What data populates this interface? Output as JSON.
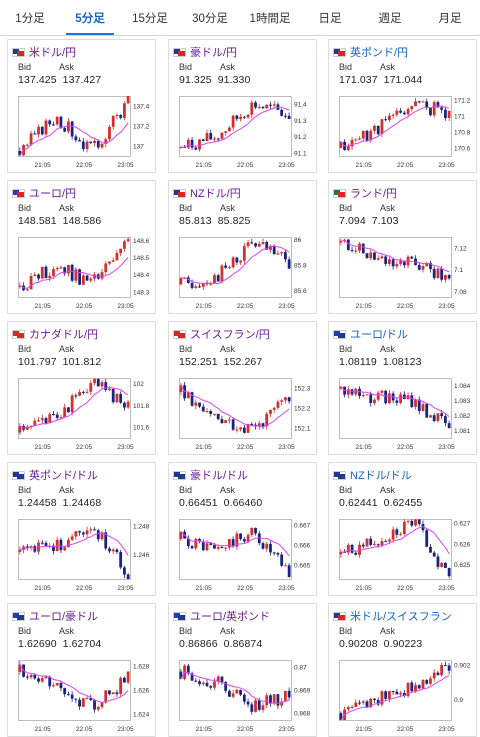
{
  "tabs": [
    {
      "label": "1分足",
      "active": false
    },
    {
      "label": "5分足",
      "active": true
    },
    {
      "label": "15分足",
      "active": false
    },
    {
      "label": "30分足",
      "active": false
    },
    {
      "label": "1時間足",
      "active": false
    },
    {
      "label": "日足",
      "active": false
    },
    {
      "label": "週足",
      "active": false
    },
    {
      "label": "月足",
      "active": false
    }
  ],
  "labels": {
    "bid": "Bid",
    "ask": "Ask"
  },
  "x_ticks": [
    "21:05",
    "22:05",
    "23:05"
  ],
  "colors": {
    "up": "#d32f2f",
    "down": "#1a237e",
    "ma": "#e040fb",
    "pair_purple": "#6a1b9a",
    "pair_blue": "#1565c0"
  },
  "pairs": [
    {
      "name": "米ドル/円",
      "flag": [
        "#1e3a8a",
        "#dc2626"
      ],
      "bid": "137.425",
      "ask": "137.427",
      "yticks": [
        "137.4",
        "137.2",
        "137"
      ],
      "ylim": [
        136.9,
        137.5
      ],
      "trend": [
        136.95,
        137.3,
        136.95,
        137.45
      ],
      "seed": 3
    },
    {
      "name": "豪ドル/円",
      "flag": [
        "#1e3a8a",
        "#dc2626"
      ],
      "bid": "91.325",
      "ask": "91.330",
      "yticks": [
        "91.4",
        "91.3",
        "91.2",
        "91.1"
      ],
      "ylim": [
        91.08,
        91.45
      ],
      "trend": [
        91.13,
        91.2,
        91.4,
        91.33
      ],
      "seed": 7
    },
    {
      "name": "英ポンド/円",
      "flag": [
        "#1e3a8a",
        "#dc2626"
      ],
      "bid": "171.037",
      "ask": "171.044",
      "yticks": [
        "171.2",
        "171",
        "170.8",
        "170.6"
      ],
      "ylim": [
        170.5,
        171.25
      ],
      "trend": [
        170.6,
        170.85,
        171.15,
        171.04
      ],
      "seed": 11
    },
    {
      "name": "ユーロ/円",
      "flag": [
        "#1e40af",
        "#dc2626"
      ],
      "bid": "148.581",
      "ask": "148.586",
      "yticks": [
        "148.6",
        "148.5",
        "148.4",
        "148.3"
      ],
      "ylim": [
        148.27,
        148.62
      ],
      "trend": [
        148.33,
        148.45,
        148.35,
        148.58
      ],
      "seed": 13
    },
    {
      "name": "NZドル/円",
      "flag": [
        "#1e3a8a",
        "#dc2626"
      ],
      "bid": "85.813",
      "ask": "85.825",
      "yticks": [
        "86",
        "85.8",
        "85.6"
      ],
      "ylim": [
        85.55,
        86.02
      ],
      "trend": [
        85.65,
        85.7,
        85.98,
        85.81
      ],
      "seed": 17
    },
    {
      "name": "ランド/円",
      "flag": [
        "#15803d",
        "#dc2626"
      ],
      "bid": "7.094",
      "ask": "7.103",
      "yticks": [
        "7.12",
        "7.1",
        "7.08"
      ],
      "ylim": [
        7.075,
        7.13
      ],
      "trend": [
        7.125,
        7.11,
        7.105,
        7.094
      ],
      "seed": 19
    },
    {
      "name": "カナダドル/円",
      "flag": [
        "#dc2626",
        "#dc2626"
      ],
      "bid": "101.797",
      "ask": "101.812",
      "yticks": [
        "102",
        "101.8",
        "101.6"
      ],
      "ylim": [
        101.5,
        102.05
      ],
      "trend": [
        101.55,
        101.7,
        102.0,
        101.8
      ],
      "seed": 23
    },
    {
      "name": "スイスフラン/円",
      "flag": [
        "#dc2626",
        "#dc2626"
      ],
      "bid": "152.251",
      "ask": "152.267",
      "yticks": [
        "152.3",
        "152.2",
        "152.1"
      ],
      "ylim": [
        152.05,
        152.35
      ],
      "trend": [
        152.28,
        152.15,
        152.1,
        152.25
      ],
      "seed": 29
    },
    {
      "name": "ユーロ/ドル",
      "flag": [
        "#1e40af",
        "#1e3a8a"
      ],
      "bid": "1.08119",
      "ask": "1.08123",
      "yticks": [
        "1.084",
        "1.083",
        "1.082",
        "1.081"
      ],
      "ylim": [
        1.0805,
        1.0845
      ],
      "trend": [
        1.0838,
        1.0832,
        1.083,
        1.0812
      ],
      "seed": 31
    },
    {
      "name": "英ポンド/ドル",
      "flag": [
        "#1e3a8a",
        "#1e3a8a"
      ],
      "bid": "1.24458",
      "ask": "1.24468",
      "yticks": [
        "1.248",
        "1.246"
      ],
      "ylim": [
        1.2443,
        1.2485
      ],
      "trend": [
        1.2462,
        1.2465,
        1.2482,
        1.2446
      ],
      "seed": 37
    },
    {
      "name": "豪ドル/ドル",
      "flag": [
        "#1e3a8a",
        "#1e3a8a"
      ],
      "bid": "0.66451",
      "ask": "0.66460",
      "yticks": [
        "0.667",
        "0.666",
        "0.665"
      ],
      "ylim": [
        0.6643,
        0.6673
      ],
      "trend": [
        0.6663,
        0.6657,
        0.6666,
        0.6645
      ],
      "seed": 41
    },
    {
      "name": "NZドル/ドル",
      "flag": [
        "#1e3a8a",
        "#1e3a8a"
      ],
      "bid": "0.62441",
      "ask": "0.62455",
      "yticks": [
        "0.627",
        "0.626",
        "0.625"
      ],
      "ylim": [
        0.6243,
        0.6272
      ],
      "trend": [
        0.6255,
        0.6262,
        0.6271,
        0.6244
      ],
      "seed": 43
    },
    {
      "name": "ユーロ/豪ドル",
      "flag": [
        "#1e40af",
        "#1e3a8a"
      ],
      "bid": "1.62690",
      "ask": "1.62704",
      "yticks": [
        "1.628",
        "1.626",
        "1.624"
      ],
      "ylim": [
        1.6235,
        1.6285
      ],
      "trend": [
        1.6275,
        1.6262,
        1.6245,
        1.627
      ],
      "seed": 47
    },
    {
      "name": "ユーロ/英ポンド",
      "flag": [
        "#1e40af",
        "#1e3a8a"
      ],
      "bid": "0.86866",
      "ask": "0.86874",
      "yticks": [
        "0.87",
        "0.869",
        "0.868"
      ],
      "ylim": [
        0.8677,
        0.8703
      ],
      "trend": [
        0.8698,
        0.8693,
        0.8683,
        0.8687
      ],
      "seed": 53
    },
    {
      "name": "米ドル/スイスフラン",
      "flag": [
        "#1e3a8a",
        "#dc2626"
      ],
      "bid": "0.90208",
      "ask": "0.90223",
      "yticks": [
        "0.902",
        "0.9"
      ],
      "ylim": [
        0.8988,
        0.9023
      ],
      "trend": [
        0.8992,
        0.9,
        0.9008,
        0.9021
      ],
      "seed": 59
    }
  ]
}
